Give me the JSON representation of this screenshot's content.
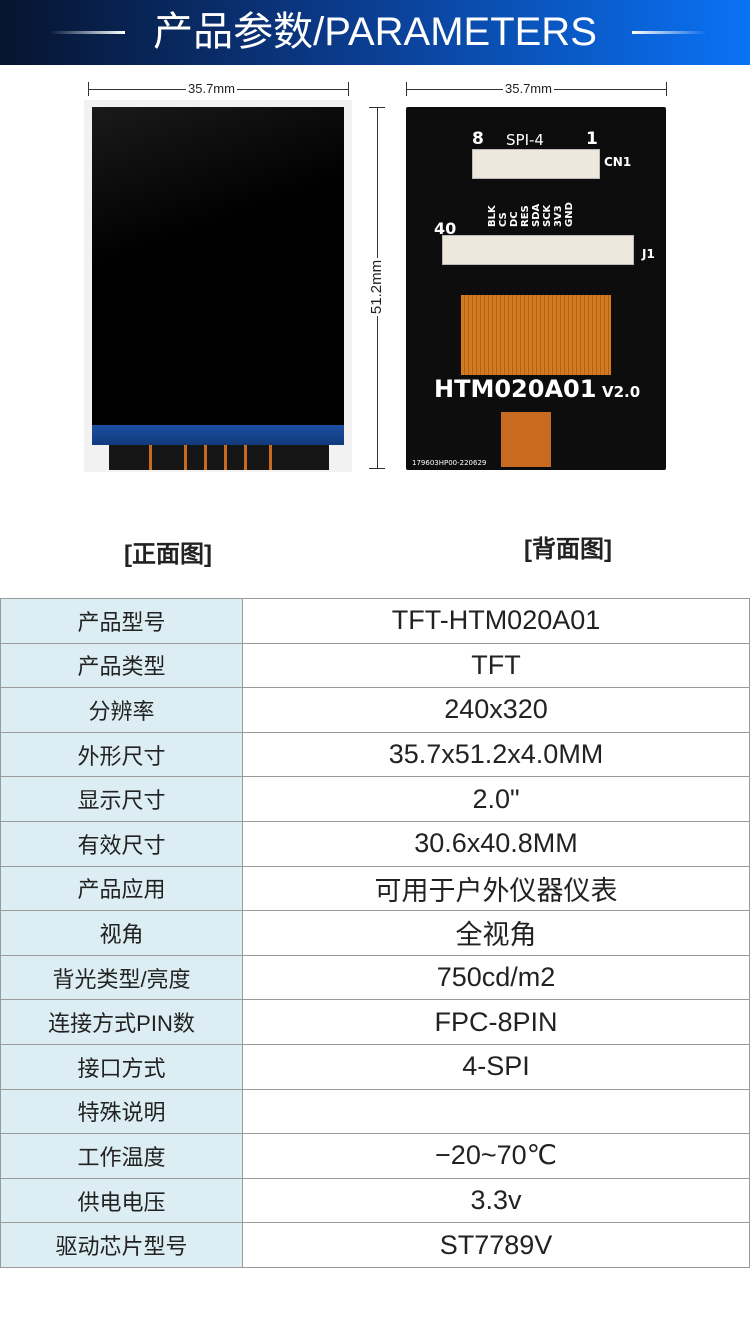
{
  "header": {
    "title": "产品参数/PARAMETERS"
  },
  "figures": {
    "front": {
      "width_label": "35.7mm",
      "height_label": "51.2mm",
      "caption": "[正面图]"
    },
    "back": {
      "width_label": "35.7mm",
      "caption": "[背面图]",
      "pcb": {
        "model": "HTM020A01",
        "version": "V2.0",
        "connector": "SPI-4",
        "cn": "CN1",
        "j": "J1",
        "pin8": "8",
        "pin1": "1",
        "pin40": "40",
        "pins": "BLK CS DC RES SDA SCK 3V3 GND",
        "code": "179603HP00-220629"
      }
    }
  },
  "table": {
    "rows": [
      {
        "label": "产品型号",
        "value": "TFT-HTM020A01"
      },
      {
        "label": "产品类型",
        "value": "TFT"
      },
      {
        "label": "分辨率",
        "value": "240x320"
      },
      {
        "label": "外形尺寸",
        "value": "35.7x51.2x4.0MM"
      },
      {
        "label": "显示尺寸",
        "value": "2.0\""
      },
      {
        "label": "有效尺寸",
        "value": "30.6x40.8MM"
      },
      {
        "label": "产品应用",
        "value": "可用于户外仪器仪表"
      },
      {
        "label": "视角",
        "value": "全视角"
      },
      {
        "label": "背光类型/亮度",
        "value": "750cd/m2"
      },
      {
        "label": "连接方式PIN数",
        "value": "FPC-8PIN"
      },
      {
        "label": "接口方式",
        "value": "4-SPI"
      },
      {
        "label": "特殊说明",
        "value": ""
      },
      {
        "label": "工作温度",
        "value": "−20~70℃"
      },
      {
        "label": "供电电压",
        "value": "3.3v"
      },
      {
        "label": "驱动芯片型号",
        "value": "ST7789V"
      }
    ]
  }
}
